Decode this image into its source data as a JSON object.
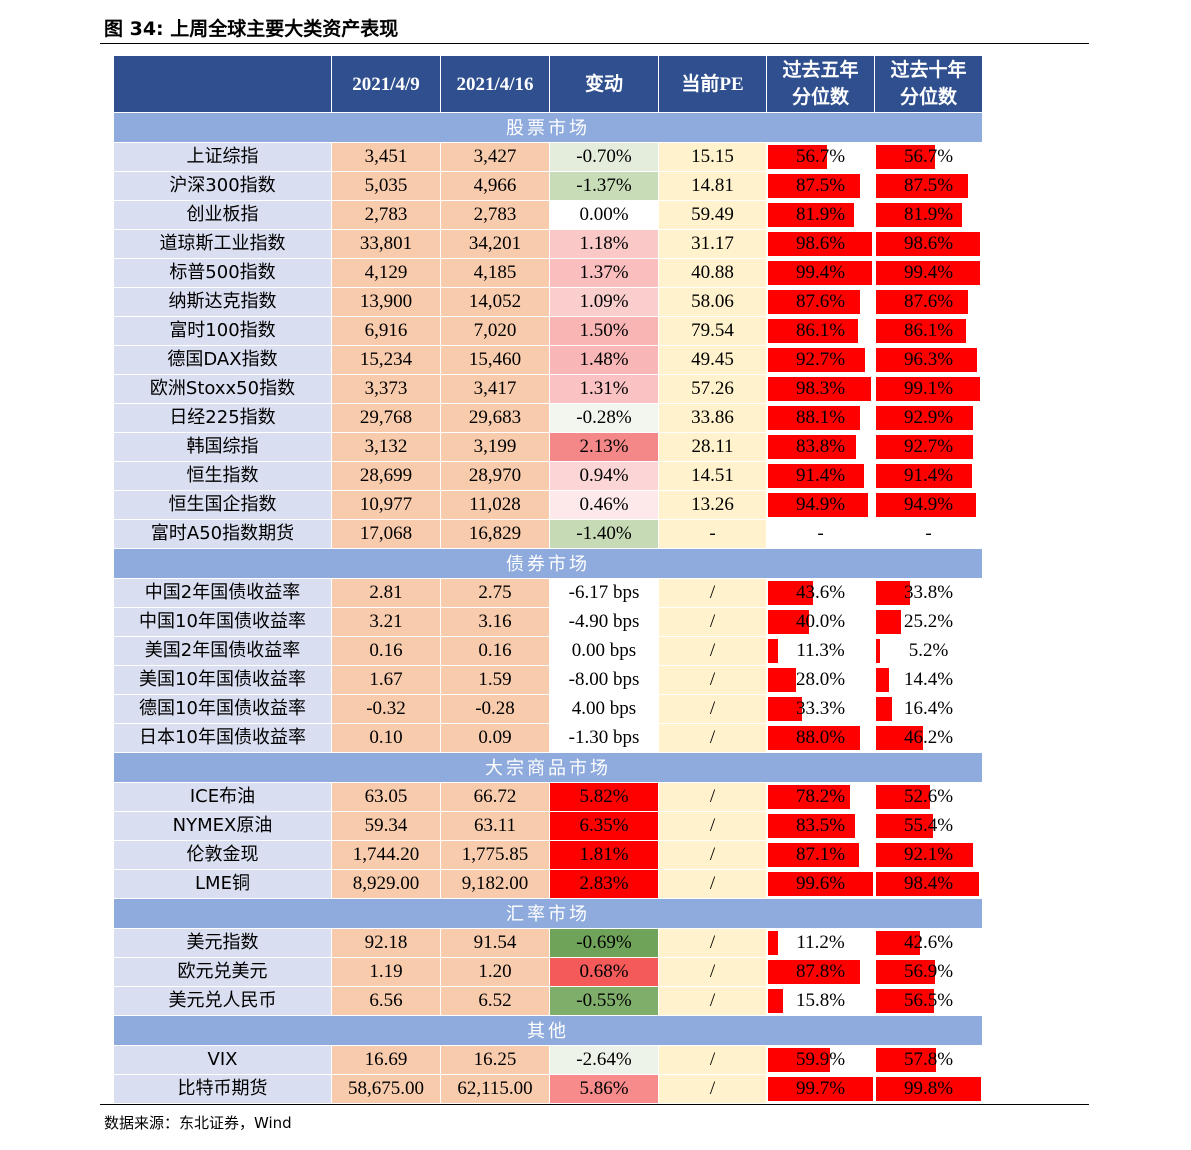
{
  "figure": {
    "title": "图  34:  上周全球主要大类资产表现",
    "source": "数据来源：东北证券，Wind"
  },
  "table": {
    "headers": [
      "",
      "2021/4/9",
      "2021/4/16",
      "变动",
      "当前PE",
      "过去五年\n分位数",
      "过去十年\n分位数"
    ],
    "sections": [
      {
        "title": "股票市场",
        "rows": [
          {
            "name": "上证综指",
            "v1": "3,451",
            "v2": "3,427",
            "chg": "-0.70%",
            "chg_bg": "#e4ecdc",
            "pe": "15.15",
            "p5": "56.7%",
            "p5v": 0.567,
            "p10": "56.7%",
            "p10v": 0.567
          },
          {
            "name": "沪深300指数",
            "v1": "5,035",
            "v2": "4,966",
            "chg": "-1.37%",
            "chg_bg": "#c9dcb8",
            "pe": "14.81",
            "p5": "87.5%",
            "p5v": 0.875,
            "p10": "87.5%",
            "p10v": 0.875
          },
          {
            "name": "创业板指",
            "v1": "2,783",
            "v2": "2,783",
            "chg": "0.00%",
            "chg_bg": "#ffffff",
            "pe": "59.49",
            "p5": "81.9%",
            "p5v": 0.819,
            "p10": "81.9%",
            "p10v": 0.819
          },
          {
            "name": "道琼斯工业指数",
            "v1": "33,801",
            "v2": "34,201",
            "chg": "1.18%",
            "chg_bg": "#fbc8c8",
            "pe": "31.17",
            "p5": "98.6%",
            "p5v": 0.986,
            "p10": "98.6%",
            "p10v": 0.986
          },
          {
            "name": "标普500指数",
            "v1": "4,129",
            "v2": "4,185",
            "chg": "1.37%",
            "chg_bg": "#fabebe",
            "pe": "40.88",
            "p5": "99.4%",
            "p5v": 0.994,
            "p10": "99.4%",
            "p10v": 0.994
          },
          {
            "name": "纳斯达克指数",
            "v1": "13,900",
            "v2": "14,052",
            "chg": "1.09%",
            "chg_bg": "#fbcece",
            "pe": "58.06",
            "p5": "87.6%",
            "p5v": 0.876,
            "p10": "87.6%",
            "p10v": 0.876
          },
          {
            "name": "富时100指数",
            "v1": "6,916",
            "v2": "7,020",
            "chg": "1.50%",
            "chg_bg": "#f9b4b4",
            "pe": "79.54",
            "p5": "86.1%",
            "p5v": 0.861,
            "p10": "86.1%",
            "p10v": 0.861
          },
          {
            "name": "德国DAX指数",
            "v1": "15,234",
            "v2": "15,460",
            "chg": "1.48%",
            "chg_bg": "#f9b6b6",
            "pe": "49.45",
            "p5": "92.7%",
            "p5v": 0.927,
            "p10": "96.3%",
            "p10v": 0.963
          },
          {
            "name": "欧洲Stoxx50指数",
            "v1": "3,373",
            "v2": "3,417",
            "chg": "1.31%",
            "chg_bg": "#fac2c2",
            "pe": "57.26",
            "p5": "98.3%",
            "p5v": 0.983,
            "p10": "99.1%",
            "p10v": 0.991
          },
          {
            "name": "日经225指数",
            "v1": "29,768",
            "v2": "29,683",
            "chg": "-0.28%",
            "chg_bg": "#f3f6ef",
            "pe": "33.86",
            "p5": "88.1%",
            "p5v": 0.881,
            "p10": "92.9%",
            "p10v": 0.929
          },
          {
            "name": "韩国综指",
            "v1": "3,132",
            "v2": "3,199",
            "chg": "2.13%",
            "chg_bg": "#f48888",
            "pe": "28.11",
            "p5": "83.8%",
            "p5v": 0.838,
            "p10": "92.7%",
            "p10v": 0.927
          },
          {
            "name": "恒生指数",
            "v1": "28,699",
            "v2": "28,970",
            "chg": "0.94%",
            "chg_bg": "#fcd6d6",
            "pe": "14.51",
            "p5": "91.4%",
            "p5v": 0.914,
            "p10": "91.4%",
            "p10v": 0.914
          },
          {
            "name": "恒生国企指数",
            "v1": "10,977",
            "v2": "11,028",
            "chg": "0.46%",
            "chg_bg": "#fde9e9",
            "pe": "13.26",
            "p5": "94.9%",
            "p5v": 0.949,
            "p10": "94.9%",
            "p10v": 0.949
          },
          {
            "name": "富时A50指数期货",
            "v1": "17,068",
            "v2": "16,829",
            "chg": "-1.40%",
            "chg_bg": "#c6dab5",
            "pe": "-",
            "p5": "-",
            "p5v": 0,
            "p10": "-",
            "p10v": 0
          }
        ]
      },
      {
        "title": "债券市场",
        "rows": [
          {
            "name": "中国2年国债收益率",
            "v1": "2.81",
            "v2": "2.75",
            "chg": "-6.17 bps",
            "chg_bg": "#ffffff",
            "pe": "/",
            "p5": "43.6%",
            "p5v": 0.436,
            "p10": "33.8%",
            "p10v": 0.338
          },
          {
            "name": "中国10年国债收益率",
            "v1": "3.21",
            "v2": "3.16",
            "chg": "-4.90 bps",
            "chg_bg": "#ffffff",
            "pe": "/",
            "p5": "40.0%",
            "p5v": 0.4,
            "p10": "25.2%",
            "p10v": 0.252
          },
          {
            "name": "美国2年国债收益率",
            "v1": "0.16",
            "v2": "0.16",
            "chg": "0.00 bps",
            "chg_bg": "#ffffff",
            "pe": "/",
            "p5": "11.3%",
            "p5v": 0.113,
            "p10": "5.2%",
            "p10v": 0.052
          },
          {
            "name": "美国10年国债收益率",
            "v1": "1.67",
            "v2": "1.59",
            "chg": "-8.00 bps",
            "chg_bg": "#ffffff",
            "pe": "/",
            "p5": "28.0%",
            "p5v": 0.28,
            "p10": "14.4%",
            "p10v": 0.144
          },
          {
            "name": "德国10年国债收益率",
            "v1": "-0.32",
            "v2": "-0.28",
            "chg": "4.00 bps",
            "chg_bg": "#ffffff",
            "pe": "/",
            "p5": "33.3%",
            "p5v": 0.333,
            "p10": "16.4%",
            "p10v": 0.164
          },
          {
            "name": "日本10年国债收益率",
            "v1": "0.10",
            "v2": "0.09",
            "chg": "-1.30 bps",
            "chg_bg": "#ffffff",
            "pe": "/",
            "p5": "88.0%",
            "p5v": 0.88,
            "p10": "46.2%",
            "p10v": 0.462
          }
        ]
      },
      {
        "title": "大宗商品市场",
        "rows": [
          {
            "name": "ICE布油",
            "v1": "63.05",
            "v2": "66.72",
            "chg": "5.82%",
            "chg_bg": "#ff0000",
            "pe": "/",
            "p5": "78.2%",
            "p5v": 0.782,
            "p10": "52.6%",
            "p10v": 0.526
          },
          {
            "name": "NYMEX原油",
            "v1": "59.34",
            "v2": "63.11",
            "chg": "6.35%",
            "chg_bg": "#ff0000",
            "pe": "/",
            "p5": "83.5%",
            "p5v": 0.835,
            "p10": "55.4%",
            "p10v": 0.554
          },
          {
            "name": "伦敦金现",
            "v1": "1,744.20",
            "v2": "1,775.85",
            "chg": "1.81%",
            "chg_bg": "#ff0000",
            "pe": "/",
            "p5": "87.1%",
            "p5v": 0.871,
            "p10": "92.1%",
            "p10v": 0.921
          },
          {
            "name": "LME铜",
            "v1": "8,929.00",
            "v2": "9,182.00",
            "chg": "2.83%",
            "chg_bg": "#ff0000",
            "pe": "/",
            "p5": "99.6%",
            "p5v": 0.996,
            "p10": "98.4%",
            "p10v": 0.984
          }
        ]
      },
      {
        "title": "汇率市场",
        "rows": [
          {
            "name": "美元指数",
            "v1": "92.18",
            "v2": "91.54",
            "chg": "-0.69%",
            "chg_bg": "#70a35a",
            "pe": "/",
            "p5": "11.2%",
            "p5v": 0.112,
            "p10": "42.6%",
            "p10v": 0.426
          },
          {
            "name": "欧元兑美元",
            "v1": "1.19",
            "v2": "1.20",
            "chg": "0.68%",
            "chg_bg": "#f45a5a",
            "pe": "/",
            "p5": "87.8%",
            "p5v": 0.878,
            "p10": "56.9%",
            "p10v": 0.569
          },
          {
            "name": "美元兑人民币",
            "v1": "6.56",
            "v2": "6.52",
            "chg": "-0.55%",
            "chg_bg": "#7fae6b",
            "pe": "/",
            "p5": "15.8%",
            "p5v": 0.158,
            "p10": "56.5%",
            "p10v": 0.565
          }
        ]
      },
      {
        "title": "其他",
        "rows": [
          {
            "name": "VIX",
            "v1": "16.69",
            "v2": "16.25",
            "chg": "-2.64%",
            "chg_bg": "#eef3e9",
            "pe": "/",
            "p5": "59.9%",
            "p5v": 0.599,
            "p10": "57.8%",
            "p10v": 0.578
          },
          {
            "name": "比特币期货",
            "v1": "58,675.00",
            "v2": "62,115.00",
            "chg": "5.86%",
            "chg_bg": "#f78a8a",
            "pe": "/",
            "p5": "99.7%",
            "p5v": 0.997,
            "p10": "99.8%",
            "p10v": 0.998
          }
        ]
      }
    ]
  }
}
